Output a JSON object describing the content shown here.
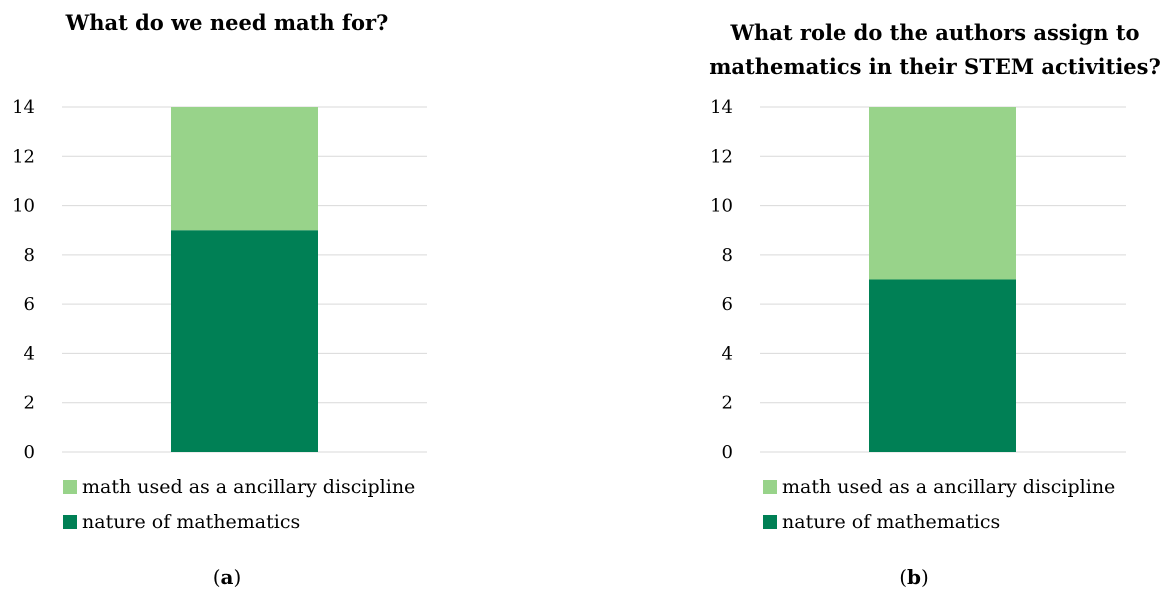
{
  "figure": {
    "captions": [
      "a",
      "b"
    ]
  },
  "colors": {
    "nature": "#008055",
    "ancillary": "#98d38a",
    "grid": "#d9d9d9"
  },
  "chart_data": [
    {
      "type": "bar",
      "stacked": true,
      "title": "What do we need math for?",
      "categories": [
        ""
      ],
      "series": [
        {
          "name": "nature of mathematics",
          "values": [
            9
          ]
        },
        {
          "name": "math used as a ancillary discipline",
          "values": [
            5
          ]
        }
      ],
      "xlabel": "",
      "ylabel": "",
      "ylim": [
        0,
        14
      ],
      "yticks": [
        0,
        2,
        4,
        6,
        8,
        10,
        12,
        14
      ],
      "grid": true,
      "legend": "bottom",
      "legend_order": [
        "math used as a ancillary discipline",
        "nature of mathematics"
      ]
    },
    {
      "type": "bar",
      "stacked": true,
      "title": "What role do the authors assign to mathematics in their STEM activities?",
      "title_lines": [
        "What role do the authors assign to",
        "mathematics in their STEM activities?"
      ],
      "categories": [
        ""
      ],
      "series": [
        {
          "name": "nature of mathematics",
          "values": [
            7
          ]
        },
        {
          "name": "math used as a ancillary discipline",
          "values": [
            7
          ]
        }
      ],
      "xlabel": "",
      "ylabel": "",
      "ylim": [
        0,
        14
      ],
      "yticks": [
        0,
        2,
        4,
        6,
        8,
        10,
        12,
        14
      ],
      "grid": true,
      "legend": "bottom",
      "legend_order": [
        "math used as a ancillary discipline",
        "nature of mathematics"
      ]
    }
  ]
}
